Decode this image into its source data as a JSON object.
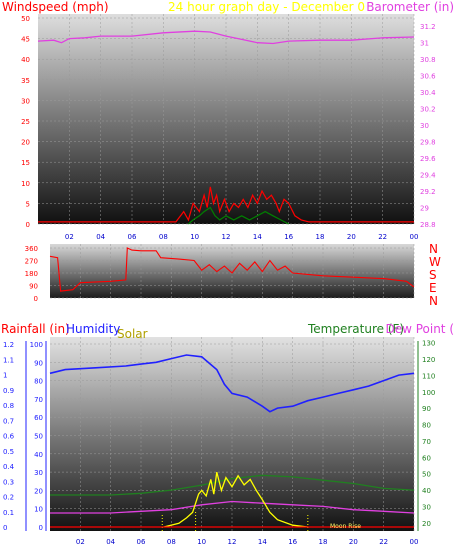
{
  "chart_data": [
    {
      "type": "line",
      "panel": "wind-barometer",
      "title": "24 hour graph day - December 0",
      "left_axis_label": "Windspeed (mph)",
      "right_axis_label": "Barometer (in)",
      "x": [
        "02",
        "04",
        "06",
        "08",
        "10",
        "12",
        "14",
        "16",
        "18",
        "20",
        "22",
        "00"
      ],
      "left_axis_ticks": [
        "0",
        "5",
        "10",
        "15",
        "20",
        "25",
        "30",
        "35",
        "40",
        "45",
        "50"
      ],
      "left_ylim": [
        0,
        50
      ],
      "right_axis_ticks": [
        "28.8",
        "29",
        "29.2",
        "29.4",
        "29.6",
        "29.8",
        "30",
        "30.2",
        "30.4",
        "30.6",
        "30.8",
        "31",
        "31.2"
      ],
      "right_ylim": [
        28.8,
        31.3
      ],
      "series": [
        {
          "name": "Barometer",
          "axis": "right",
          "color": "#e040e0",
          "points": [
            [
              0,
              31.02
            ],
            [
              1,
              31.03
            ],
            [
              1.5,
              31.0
            ],
            [
              2,
              31.05
            ],
            [
              3,
              31.06
            ],
            [
              4,
              31.08
            ],
            [
              6,
              31.08
            ],
            [
              8,
              31.12
            ],
            [
              10,
              31.14
            ],
            [
              11,
              31.13
            ],
            [
              12,
              31.08
            ],
            [
              13,
              31.04
            ],
            [
              14,
              31.0
            ],
            [
              15,
              30.99
            ],
            [
              16,
              31.02
            ],
            [
              18,
              31.03
            ],
            [
              20,
              31.03
            ],
            [
              22,
              31.06
            ],
            [
              24,
              31.07
            ]
          ]
        },
        {
          "name": "Windspeed",
          "axis": "left",
          "color": "#ff0000",
          "points": [
            [
              0,
              0.5
            ],
            [
              8.8,
              0.5
            ],
            [
              9.3,
              3
            ],
            [
              9.6,
              1
            ],
            [
              9.9,
              5
            ],
            [
              10.3,
              3
            ],
            [
              10.6,
              7
            ],
            [
              10.8,
              4
            ],
            [
              11.0,
              9
            ],
            [
              11.2,
              5
            ],
            [
              11.4,
              7
            ],
            [
              11.6,
              3
            ],
            [
              11.9,
              6
            ],
            [
              12.2,
              3
            ],
            [
              12.5,
              5
            ],
            [
              12.8,
              4
            ],
            [
              13.1,
              6
            ],
            [
              13.4,
              4
            ],
            [
              13.7,
              7
            ],
            [
              14.0,
              5
            ],
            [
              14.3,
              8
            ],
            [
              14.6,
              6
            ],
            [
              14.9,
              7
            ],
            [
              15.2,
              5
            ],
            [
              15.4,
              3
            ],
            [
              15.7,
              6
            ],
            [
              16.0,
              5
            ],
            [
              16.4,
              2
            ],
            [
              16.8,
              1
            ],
            [
              17.3,
              0.5
            ],
            [
              24,
              0.5
            ]
          ]
        },
        {
          "name": "Gust",
          "axis": "left",
          "color": "#008000",
          "points": [
            [
              9.6,
              0
            ],
            [
              9.9,
              1
            ],
            [
              10.3,
              2
            ],
            [
              10.6,
              3
            ],
            [
              11.0,
              4
            ],
            [
              11.3,
              2
            ],
            [
              11.6,
              1
            ],
            [
              12.0,
              2
            ],
            [
              12.5,
              1
            ],
            [
              13.0,
              2
            ],
            [
              13.5,
              1
            ],
            [
              14.0,
              2
            ],
            [
              14.5,
              3
            ],
            [
              15.0,
              2
            ],
            [
              15.5,
              1
            ],
            [
              16.0,
              0
            ]
          ]
        }
      ]
    },
    {
      "type": "line",
      "panel": "wind-direction",
      "left_axis_ticks": [
        "0",
        "90",
        "180",
        "270",
        "360"
      ],
      "ylim": [
        0,
        360
      ],
      "compass_labels": [
        "N",
        "W",
        "S",
        "E",
        "N"
      ],
      "series": [
        {
          "name": "Wind direction",
          "color": "#ff0000",
          "points": [
            [
              0,
              300
            ],
            [
              0.5,
              290
            ],
            [
              0.7,
              50
            ],
            [
              1.5,
              60
            ],
            [
              2,
              110
            ],
            [
              4,
              120
            ],
            [
              5,
              130
            ],
            [
              5.1,
              360
            ],
            [
              5.4,
              345
            ],
            [
              6,
              340
            ],
            [
              7,
              340
            ],
            [
              7.3,
              290
            ],
            [
              8.5,
              280
            ],
            [
              9.5,
              270
            ],
            [
              10,
              200
            ],
            [
              10.5,
              240
            ],
            [
              11,
              190
            ],
            [
              11.5,
              230
            ],
            [
              12,
              180
            ],
            [
              12.5,
              250
            ],
            [
              13,
              200
            ],
            [
              13.5,
              260
            ],
            [
              14,
              190
            ],
            [
              14.5,
              270
            ],
            [
              15,
              200
            ],
            [
              15.5,
              230
            ],
            [
              16,
              180
            ],
            [
              17,
              170
            ],
            [
              18,
              160
            ],
            [
              20,
              150
            ],
            [
              22,
              140
            ],
            [
              23.5,
              120
            ],
            [
              24,
              80
            ]
          ]
        }
      ]
    },
    {
      "type": "line",
      "panel": "rain-humidity-solar-temperature",
      "legend": [
        "Rainfall (in)",
        "Humidity",
        "Solar",
        "Temperature (F)",
        "Dew Point ("
      ],
      "x": [
        "02",
        "04",
        "06",
        "08",
        "10",
        "12",
        "14",
        "16",
        "18",
        "20",
        "22",
        "00"
      ],
      "rain_ticks": [
        "0",
        "0.1",
        "0.2",
        "0.3",
        "0.4",
        "0.5",
        "0.6",
        "0.7",
        "0.8",
        "0.9",
        "1",
        "1.1",
        "1.2"
      ],
      "humidity_ticks": [
        "0",
        "10",
        "20",
        "30",
        "40",
        "50",
        "60",
        "70",
        "80",
        "90",
        "100"
      ],
      "temperature_ticks": [
        "20",
        "30",
        "40",
        "50",
        "60",
        "70",
        "80",
        "90",
        "100",
        "110",
        "120",
        "130"
      ],
      "humidity_ylim": [
        0,
        100
      ],
      "temperature_ylim": [
        15,
        131
      ],
      "annotation": "Moon Rise",
      "series": [
        {
          "name": "Humidity",
          "axis": "humidity",
          "color": "#2020ff",
          "points": [
            [
              0,
              84
            ],
            [
              1,
              86
            ],
            [
              3,
              87
            ],
            [
              5,
              88
            ],
            [
              6,
              89
            ],
            [
              7,
              90
            ],
            [
              8,
              92
            ],
            [
              9,
              94
            ],
            [
              10,
              93
            ],
            [
              11,
              86
            ],
            [
              11.5,
              78
            ],
            [
              12,
              73
            ],
            [
              13,
              71
            ],
            [
              14,
              66
            ],
            [
              14.5,
              63
            ],
            [
              15,
              65
            ],
            [
              16,
              66
            ],
            [
              17,
              69
            ],
            [
              18,
              71
            ],
            [
              19,
              73
            ],
            [
              20,
              75
            ],
            [
              21,
              77
            ],
            [
              22,
              80
            ],
            [
              23,
              83
            ],
            [
              24,
              84
            ]
          ]
        },
        {
          "name": "Temperature",
          "axis": "temperature",
          "color": "#208020",
          "points": [
            [
              0,
              37
            ],
            [
              2,
              37
            ],
            [
              4,
              37
            ],
            [
              6,
              38
            ],
            [
              8,
              40
            ],
            [
              10,
              43
            ],
            [
              12,
              47
            ],
            [
              14,
              49
            ],
            [
              16,
              48
            ],
            [
              18,
              46
            ],
            [
              20,
              44
            ],
            [
              22,
              41
            ],
            [
              24,
              40
            ]
          ]
        },
        {
          "name": "Dew Point",
          "axis": "temperature",
          "color": "#e040e0",
          "points": [
            [
              0,
              26
            ],
            [
              4,
              26
            ],
            [
              6,
              27
            ],
            [
              8,
              28
            ],
            [
              10,
              31
            ],
            [
              12,
              33
            ],
            [
              14,
              32
            ],
            [
              16,
              31
            ],
            [
              18,
              30
            ],
            [
              20,
              28
            ],
            [
              22,
              27
            ],
            [
              24,
              26
            ]
          ]
        },
        {
          "name": "Solar",
          "axis": "humidity",
          "color": "#ffff00",
          "points": [
            [
              7.5,
              0
            ],
            [
              8.5,
              2
            ],
            [
              9.0,
              5
            ],
            [
              9.4,
              8
            ],
            [
              9.8,
              18
            ],
            [
              10.0,
              20
            ],
            [
              10.3,
              17
            ],
            [
              10.6,
              26
            ],
            [
              10.8,
              18
            ],
            [
              11.0,
              30
            ],
            [
              11.3,
              20
            ],
            [
              11.6,
              27
            ],
            [
              12.0,
              22
            ],
            [
              12.4,
              28
            ],
            [
              12.8,
              23
            ],
            [
              13.2,
              26
            ],
            [
              13.6,
              20
            ],
            [
              14.0,
              15
            ],
            [
              14.5,
              8
            ],
            [
              15.0,
              4
            ],
            [
              16.0,
              1
            ],
            [
              17.0,
              0
            ]
          ]
        },
        {
          "name": "Rainfall",
          "axis": "humidity",
          "color": "#ff0000",
          "points": [
            [
              0,
              0
            ],
            [
              24,
              0
            ]
          ]
        }
      ]
    }
  ]
}
